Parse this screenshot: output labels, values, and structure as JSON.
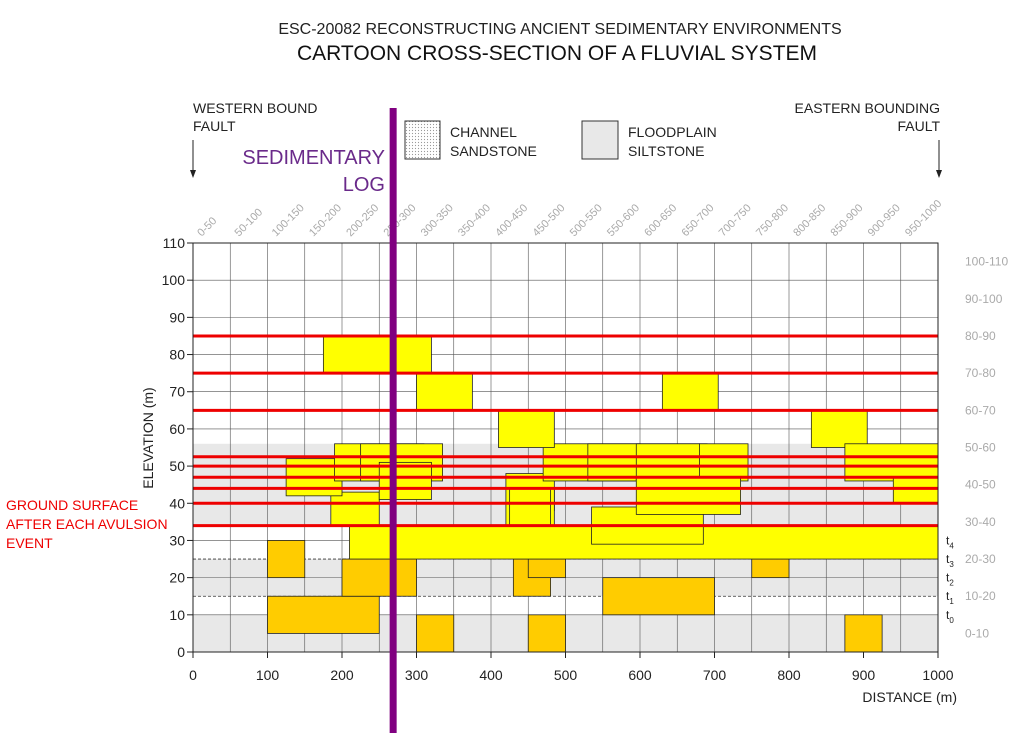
{
  "title": {
    "line1": "ESC-20082 RECONSTRUCTING ANCIENT SEDIMENTARY ENVIRONMENTS",
    "line2": "CARTOON CROSS-SECTION OF A FLUVIAL SYSTEM"
  },
  "faults": {
    "west_line1": "WESTERN BOUND",
    "west_line2": "FAULT",
    "east_line1": "EASTERN BOUNDING",
    "east_line2": "FAULT"
  },
  "legend": {
    "channel_line1": "CHANNEL",
    "channel_line2": "SANDSTONE",
    "floodplain_line1": "FLOODPLAIN",
    "floodplain_line2": "SILTSTONE"
  },
  "log_label": {
    "line1": "SEDIMENTARY",
    "line2": "LOG"
  },
  "ground_surface_label": {
    "line1": "GROUND SURFACE",
    "line2": "AFTER EACH AVULSION",
    "line3": "EVENT"
  },
  "colors": {
    "yellow_sand": "#ffff00",
    "orange_sand": "#ffcc00",
    "floodplain": "#e8e8e8",
    "surface_line": "#ee0000",
    "log_line": "#800080",
    "log_text": "#6a2a8a",
    "label_red": "#ee0000",
    "interval_label": "#aaaaaa"
  },
  "chart_data": {
    "type": "diagram",
    "xlabel": "DISTANCE (m)",
    "ylabel": "ELEVATION (m)",
    "xlim": [
      0,
      1000
    ],
    "ylim": [
      0,
      110
    ],
    "x_ticks": [
      0,
      100,
      200,
      300,
      400,
      500,
      600,
      700,
      800,
      900,
      1000
    ],
    "y_ticks": [
      0,
      10,
      20,
      30,
      40,
      50,
      60,
      70,
      80,
      90,
      100,
      110
    ],
    "x_interval_labels": [
      "0-50",
      "50-100",
      "100-150",
      "150-200",
      "200-250",
      "250-300",
      "300-350",
      "350-400",
      "400-450",
      "450-500",
      "500-550",
      "550-600",
      "600-650",
      "650-700",
      "700-750",
      "750-800",
      "800-850",
      "850-900",
      "900-950",
      "950-1000"
    ],
    "y_interval_labels": [
      {
        "label": "100-110",
        "y": 105
      },
      {
        "label": "90-100",
        "y": 95
      },
      {
        "label": "80-90",
        "y": 85
      },
      {
        "label": "70-80",
        "y": 75
      },
      {
        "label": "60-70",
        "y": 65
      },
      {
        "label": "50-60",
        "y": 55
      },
      {
        "label": "40-50",
        "y": 45
      },
      {
        "label": "30-40",
        "y": 35
      },
      {
        "label": "20-30",
        "y": 25
      },
      {
        "label": "10-20",
        "y": 15
      },
      {
        "label": "0-10",
        "y": 5
      }
    ],
    "grid": true,
    "sedimentary_log_x": 270,
    "floodplain_bands": [
      {
        "y0": 0,
        "y1": 10
      },
      {
        "y0": 15,
        "y1": 25
      },
      {
        "y0": 34,
        "y1": 56
      }
    ],
    "time_lines": [
      {
        "label": "t",
        "sub": "0",
        "y": 10,
        "style": "none"
      },
      {
        "label": "t",
        "sub": "1",
        "y": 15,
        "style": "dashed"
      },
      {
        "label": "t",
        "sub": "2",
        "y": 20,
        "style": "none"
      },
      {
        "label": "t",
        "sub": "3",
        "y": 25,
        "style": "dashed"
      },
      {
        "label": "t",
        "sub": "4",
        "y": 30,
        "style": "none"
      }
    ],
    "surface_lines": [
      34,
      40,
      44,
      47,
      50,
      52.5,
      65,
      75,
      85
    ],
    "channels": [
      {
        "x0": 100,
        "x1": 150,
        "y0": 20,
        "y1": 30,
        "color": "orange"
      },
      {
        "x0": 100,
        "x1": 250,
        "y0": 5,
        "y1": 15,
        "color": "orange"
      },
      {
        "x0": 200,
        "x1": 300,
        "y0": 15,
        "y1": 25,
        "color": "orange"
      },
      {
        "x0": 300,
        "x1": 350,
        "y0": 0,
        "y1": 10,
        "color": "orange"
      },
      {
        "x0": 430,
        "x1": 480,
        "y0": 15,
        "y1": 25,
        "color": "orange"
      },
      {
        "x0": 450,
        "x1": 500,
        "y0": 20,
        "y1": 25,
        "color": "orange"
      },
      {
        "x0": 450,
        "x1": 500,
        "y0": 0,
        "y1": 10,
        "color": "orange"
      },
      {
        "x0": 550,
        "x1": 700,
        "y0": 10,
        "y1": 20,
        "color": "orange"
      },
      {
        "x0": 750,
        "x1": 800,
        "y0": 20,
        "y1": 25,
        "color": "orange"
      },
      {
        "x0": 875,
        "x1": 925,
        "y0": 0,
        "y1": 10,
        "color": "orange"
      },
      {
        "x0": 210,
        "x1": 1000,
        "y0": 25,
        "y1": 34,
        "color": "yellow"
      },
      {
        "x0": 535,
        "x1": 685,
        "y0": 29,
        "y1": 39,
        "color": "yellow"
      },
      {
        "x0": 185,
        "x1": 250,
        "y0": 34,
        "y1": 43,
        "color": "yellow"
      },
      {
        "x0": 420,
        "x1": 485,
        "y0": 38,
        "y1": 48,
        "color": "yellow"
      },
      {
        "x0": 420,
        "x1": 485,
        "y0": 34,
        "y1": 44,
        "color": "yellow"
      },
      {
        "x0": 425,
        "x1": 480,
        "y0": 34,
        "y1": 44,
        "color": "yellow"
      },
      {
        "x0": 125,
        "x1": 200,
        "y0": 42,
        "y1": 52,
        "color": "yellow"
      },
      {
        "x0": 190,
        "x1": 310,
        "y0": 46,
        "y1": 56,
        "color": "yellow"
      },
      {
        "x0": 225,
        "x1": 335,
        "y0": 46,
        "y1": 56,
        "color": "yellow"
      },
      {
        "x0": 250,
        "x1": 320,
        "y0": 41,
        "y1": 51,
        "color": "yellow"
      },
      {
        "x0": 470,
        "x1": 600,
        "y0": 46,
        "y1": 56,
        "color": "yellow"
      },
      {
        "x0": 530,
        "x1": 680,
        "y0": 46,
        "y1": 56,
        "color": "yellow"
      },
      {
        "x0": 595,
        "x1": 690,
        "y0": 46,
        "y1": 56,
        "color": "yellow"
      },
      {
        "x0": 680,
        "x1": 745,
        "y0": 46,
        "y1": 56,
        "color": "yellow"
      },
      {
        "x0": 595,
        "x1": 735,
        "y0": 37,
        "y1": 47,
        "color": "yellow"
      },
      {
        "x0": 410,
        "x1": 485,
        "y0": 55,
        "y1": 65,
        "color": "yellow"
      },
      {
        "x0": 300,
        "x1": 375,
        "y0": 65,
        "y1": 75,
        "color": "yellow"
      },
      {
        "x0": 630,
        "x1": 705,
        "y0": 65,
        "y1": 75,
        "color": "yellow"
      },
      {
        "x0": 175,
        "x1": 320,
        "y0": 75,
        "y1": 85,
        "color": "yellow"
      },
      {
        "x0": 830,
        "x1": 905,
        "y0": 55,
        "y1": 65,
        "color": "yellow"
      },
      {
        "x0": 875,
        "x1": 1000,
        "y0": 46,
        "y1": 56,
        "color": "yellow"
      },
      {
        "x0": 940,
        "x1": 1000,
        "y0": 40,
        "y1": 47,
        "color": "yellow"
      }
    ]
  }
}
